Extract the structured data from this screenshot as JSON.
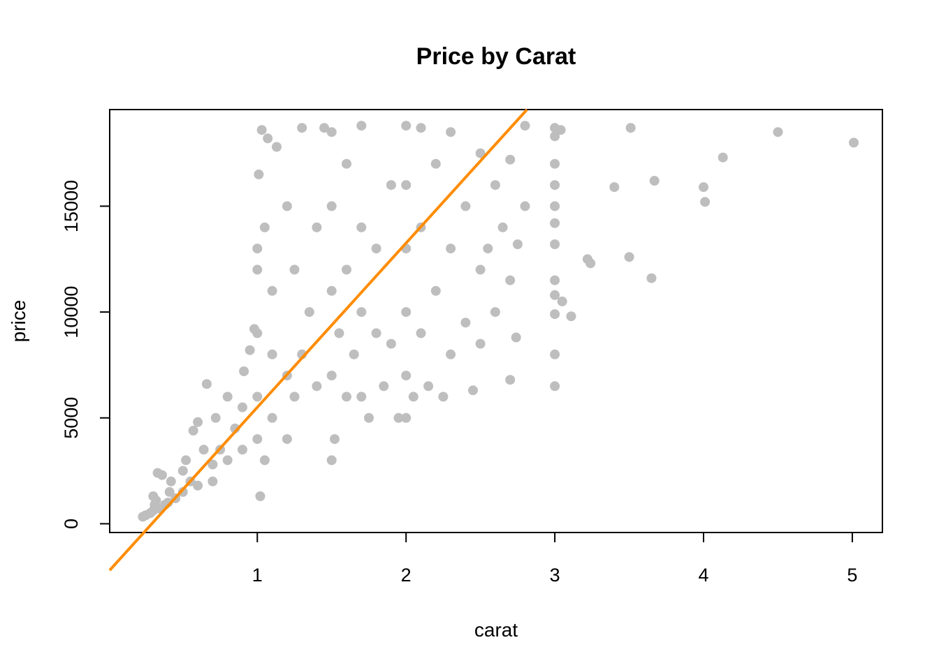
{
  "chart_data": {
    "type": "scatter",
    "title": "Price by Carat",
    "xlabel": "carat",
    "ylabel": "price",
    "xlim": [
      0.2,
      5.01
    ],
    "ylim": [
      326,
      18823
    ],
    "xticks": [
      1,
      2,
      3,
      4,
      5
    ],
    "yticks": [
      0,
      5000,
      10000,
      15000
    ],
    "grid": false,
    "point_color": "#bebebe",
    "line_color": "#ff8c00",
    "fit_line": {
      "intercept": -2256,
      "slope": 7756
    },
    "series": [
      {
        "points": [
          [
            0.23,
            330
          ],
          [
            0.25,
            400
          ],
          [
            0.28,
            500
          ],
          [
            0.3,
            620
          ],
          [
            0.31,
            900
          ],
          [
            0.32,
            1100
          ],
          [
            0.3,
            1300
          ],
          [
            0.35,
            700
          ],
          [
            0.38,
            900
          ],
          [
            0.4,
            1000
          ],
          [
            0.41,
            1500
          ],
          [
            0.42,
            2000
          ],
          [
            0.33,
            2400
          ],
          [
            0.36,
            2300
          ],
          [
            0.45,
            1200
          ],
          [
            0.5,
            1500
          ],
          [
            0.5,
            2500
          ],
          [
            0.52,
            3000
          ],
          [
            0.55,
            2000
          ],
          [
            0.57,
            4400
          ],
          [
            0.6,
            1800
          ],
          [
            0.6,
            4800
          ],
          [
            0.64,
            3500
          ],
          [
            0.66,
            6600
          ],
          [
            0.7,
            2000
          ],
          [
            0.7,
            2800
          ],
          [
            0.72,
            5000
          ],
          [
            0.75,
            3500
          ],
          [
            0.8,
            3000
          ],
          [
            0.8,
            6000
          ],
          [
            0.85,
            4500
          ],
          [
            0.9,
            5500
          ],
          [
            0.9,
            3500
          ],
          [
            0.91,
            7200
          ],
          [
            0.95,
            8200
          ],
          [
            0.98,
            9200
          ],
          [
            1.0,
            4000
          ],
          [
            1.0,
            6000
          ],
          [
            1.0,
            9000
          ],
          [
            1.0,
            12000
          ],
          [
            1.0,
            13000
          ],
          [
            1.01,
            16500
          ],
          [
            1.02,
            1300
          ],
          [
            1.03,
            18600
          ],
          [
            1.05,
            3000
          ],
          [
            1.05,
            14000
          ],
          [
            1.07,
            18200
          ],
          [
            1.1,
            5000
          ],
          [
            1.1,
            8000
          ],
          [
            1.1,
            11000
          ],
          [
            1.13,
            17800
          ],
          [
            1.2,
            4000
          ],
          [
            1.2,
            7000
          ],
          [
            1.2,
            15000
          ],
          [
            1.25,
            6000
          ],
          [
            1.25,
            12000
          ],
          [
            1.3,
            8000
          ],
          [
            1.3,
            18700
          ],
          [
            1.35,
            10000
          ],
          [
            1.4,
            6500
          ],
          [
            1.4,
            14000
          ],
          [
            1.45,
            18700
          ],
          [
            1.5,
            3000
          ],
          [
            1.5,
            7000
          ],
          [
            1.5,
            11000
          ],
          [
            1.5,
            15000
          ],
          [
            1.5,
            18500
          ],
          [
            1.52,
            4000
          ],
          [
            1.55,
            9000
          ],
          [
            1.6,
            6000
          ],
          [
            1.6,
            12000
          ],
          [
            1.6,
            17000
          ],
          [
            1.65,
            8000
          ],
          [
            1.7,
            6000
          ],
          [
            1.7,
            10000
          ],
          [
            1.7,
            14000
          ],
          [
            1.7,
            18800
          ],
          [
            1.75,
            5000
          ],
          [
            1.8,
            9000
          ],
          [
            1.8,
            13000
          ],
          [
            1.85,
            6500
          ],
          [
            1.9,
            8500
          ],
          [
            1.9,
            16000
          ],
          [
            1.95,
            5000
          ],
          [
            2.0,
            5000
          ],
          [
            2.0,
            7000
          ],
          [
            2.0,
            10000
          ],
          [
            2.0,
            13000
          ],
          [
            2.0,
            16000
          ],
          [
            2.0,
            18800
          ],
          [
            2.05,
            6000
          ],
          [
            2.1,
            9000
          ],
          [
            2.1,
            14000
          ],
          [
            2.1,
            18700
          ],
          [
            2.15,
            6500
          ],
          [
            2.2,
            11000
          ],
          [
            2.2,
            17000
          ],
          [
            2.25,
            6000
          ],
          [
            2.3,
            8000
          ],
          [
            2.3,
            13000
          ],
          [
            2.3,
            18500
          ],
          [
            2.4,
            9500
          ],
          [
            2.4,
            15000
          ],
          [
            2.45,
            6300
          ],
          [
            2.5,
            8500
          ],
          [
            2.5,
            12000
          ],
          [
            2.5,
            17500
          ],
          [
            2.55,
            13000
          ],
          [
            2.6,
            10000
          ],
          [
            2.6,
            16000
          ],
          [
            2.65,
            14000
          ],
          [
            2.7,
            6800
          ],
          [
            2.7,
            11500
          ],
          [
            2.7,
            17200
          ],
          [
            2.74,
            8800
          ],
          [
            2.75,
            13200
          ],
          [
            2.8,
            15000
          ],
          [
            2.8,
            18800
          ],
          [
            3.0,
            6500
          ],
          [
            3.0,
            8000
          ],
          [
            3.0,
            9900
          ],
          [
            3.0,
            10800
          ],
          [
            3.0,
            11500
          ],
          [
            3.0,
            13200
          ],
          [
            3.0,
            14200
          ],
          [
            3.0,
            15000
          ],
          [
            3.0,
            16000
          ],
          [
            3.0,
            17000
          ],
          [
            3.0,
            18300
          ],
          [
            3.0,
            18700
          ],
          [
            3.04,
            18600
          ],
          [
            3.05,
            10500
          ],
          [
            3.11,
            9800
          ],
          [
            3.22,
            12500
          ],
          [
            3.24,
            12300
          ],
          [
            3.4,
            15900
          ],
          [
            3.5,
            12600
          ],
          [
            3.51,
            18700
          ],
          [
            3.65,
            11600
          ],
          [
            3.67,
            16200
          ],
          [
            4.0,
            15900
          ],
          [
            4.01,
            15200
          ],
          [
            4.13,
            17300
          ],
          [
            4.5,
            18500
          ],
          [
            5.01,
            18000
          ]
        ]
      }
    ]
  }
}
